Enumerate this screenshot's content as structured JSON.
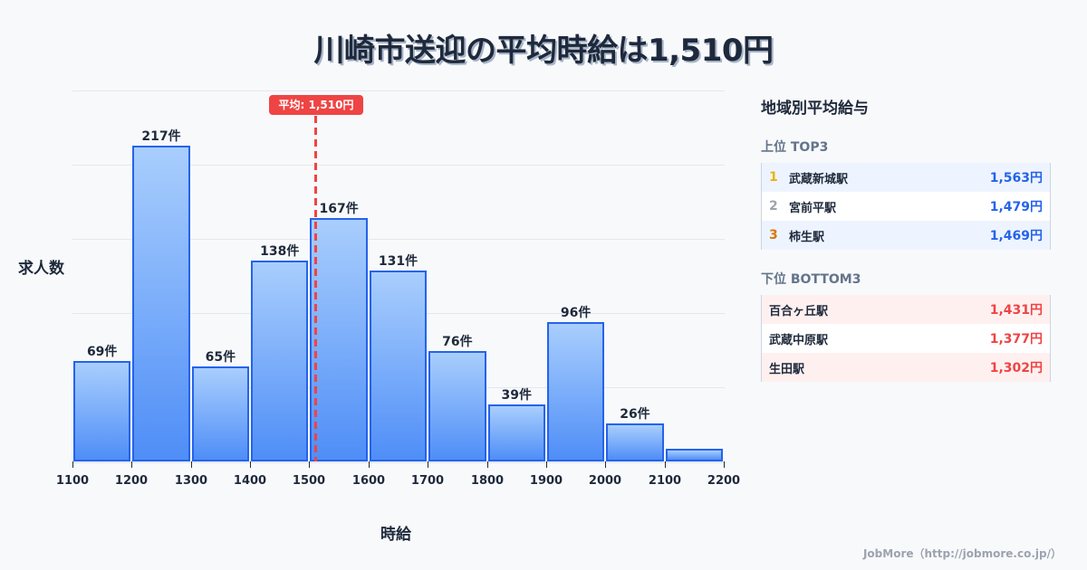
{
  "title": "川崎市送迎の平均時給は1,510円",
  "chart_data": {
    "type": "bar",
    "title": "川崎市送迎の平均時給は1,510円",
    "xlabel": "時給",
    "ylabel": "求人数",
    "bin_edges": [
      1100,
      1200,
      1300,
      1400,
      1500,
      1600,
      1700,
      1800,
      1900,
      2000,
      2100,
      2200
    ],
    "categories": [
      "1100-1200",
      "1200-1300",
      "1300-1400",
      "1400-1500",
      "1500-1600",
      "1600-1700",
      "1700-1800",
      "1800-1900",
      "1900-2000",
      "2000-2100",
      "2100-2200"
    ],
    "values": [
      69,
      217,
      65,
      138,
      167,
      131,
      76,
      39,
      96,
      26,
      9
    ],
    "labels": [
      "69件",
      "217件",
      "65件",
      "138件",
      "167件",
      "131件",
      "76件",
      "39件",
      "96件",
      "26件",
      ""
    ],
    "xticks": [
      "1100",
      "1200",
      "1300",
      "1400",
      "1500",
      "1600",
      "1700",
      "1800",
      "1900",
      "2000",
      "2100",
      "2200"
    ],
    "mean": 1510,
    "mean_label": "平均: 1,510円",
    "grid": true,
    "colors": {
      "bar_top": "#a9cefd",
      "bar_bottom": "#4f8ef7",
      "bar_border": "#2563eb",
      "mean": "#ef4444"
    }
  },
  "panel": {
    "title": "地域別平均給与",
    "top_title": "上位 TOP3",
    "top": [
      {
        "rank": "1",
        "name": "武蔵新城駅",
        "value": "1,563円",
        "rank_color": "#eab308"
      },
      {
        "rank": "2",
        "name": "宮前平駅",
        "value": "1,479円",
        "rank_color": "#9ca3af"
      },
      {
        "rank": "3",
        "name": "柿生駅",
        "value": "1,469円",
        "rank_color": "#d97706"
      }
    ],
    "bottom_title": "下位 BOTTOM3",
    "bottom": [
      {
        "name": "百合ヶ丘駅",
        "value": "1,431円"
      },
      {
        "name": "武蔵中原駅",
        "value": "1,377円"
      },
      {
        "name": "生田駅",
        "value": "1,302円"
      }
    ]
  },
  "footer": "JobMore（http://jobmore.co.jp/）"
}
